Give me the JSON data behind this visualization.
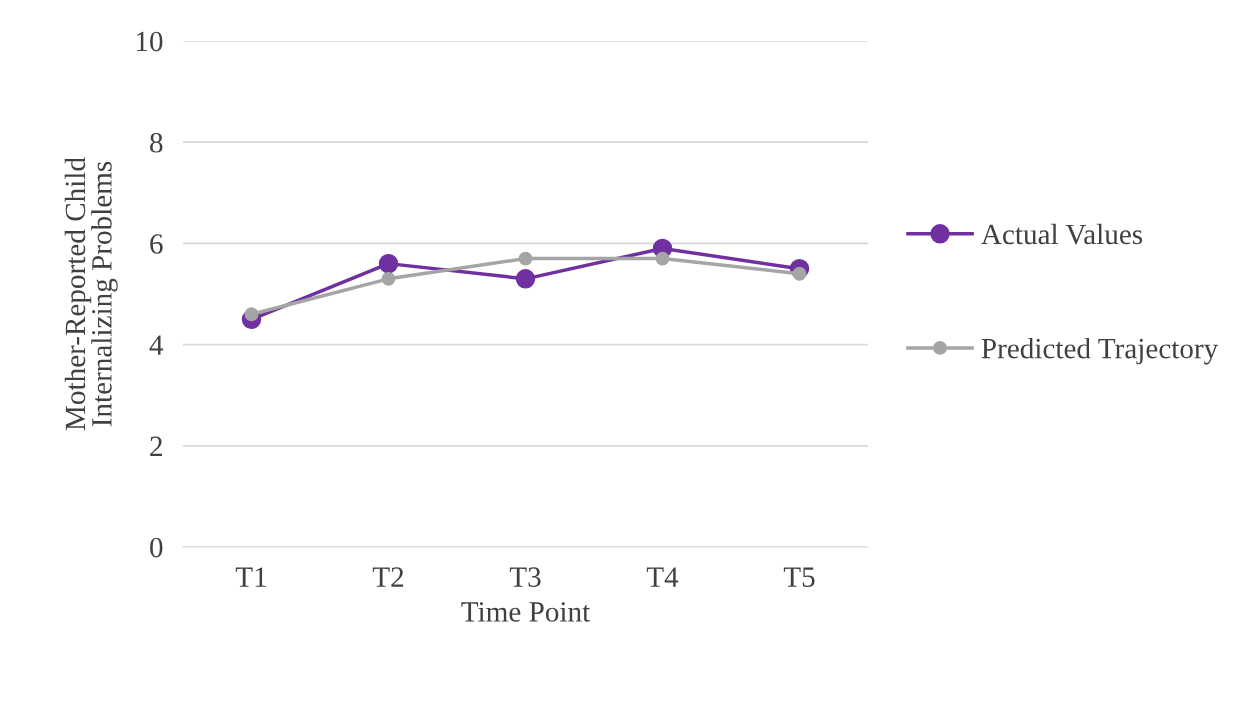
{
  "chart_data": {
    "type": "line",
    "xlabel": "Time Point",
    "ylabel": "Mother-Reported Child\nInternalizing Problems",
    "categories": [
      "T1",
      "T2",
      "T3",
      "T4",
      "T5"
    ],
    "series": [
      {
        "name": "Actual Values",
        "color": "#7030a0",
        "values": [
          4.5,
          5.6,
          5.3,
          5.9,
          5.5
        ]
      },
      {
        "name": "Predicted Trajectory",
        "color": "#a5a5a5",
        "values": [
          4.6,
          5.3,
          5.7,
          5.7,
          5.4
        ]
      }
    ],
    "ylim": [
      0,
      10
    ],
    "yticks": [
      0,
      2,
      4,
      6,
      8,
      10
    ],
    "grid": "y",
    "legend": "right",
    "marker": "circle",
    "line_style": "solid"
  }
}
